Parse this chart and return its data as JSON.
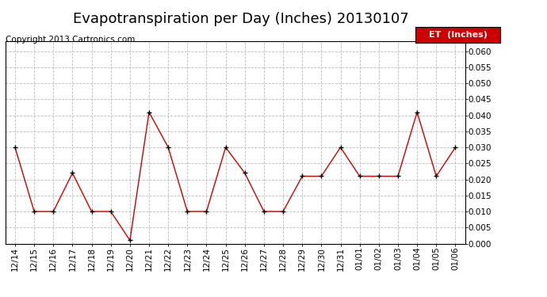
{
  "title": "Evapotranspiration per Day (Inches) 20130107",
  "copyright": "Copyright 2013 Cartronics.com",
  "legend_label": "ET  (Inches)",
  "x_labels": [
    "12/14",
    "12/15",
    "12/16",
    "12/17",
    "12/18",
    "12/19",
    "12/20",
    "12/21",
    "12/22",
    "12/23",
    "12/24",
    "12/25",
    "12/26",
    "12/27",
    "12/28",
    "12/29",
    "12/30",
    "12/31",
    "01/01",
    "01/02",
    "01/03",
    "01/04",
    "01/05",
    "01/06"
  ],
  "y_values": [
    0.03,
    0.01,
    0.01,
    0.022,
    0.01,
    0.01,
    0.001,
    0.041,
    0.03,
    0.01,
    0.01,
    0.03,
    0.022,
    0.01,
    0.01,
    0.021,
    0.021,
    0.03,
    0.021,
    0.021,
    0.021,
    0.041,
    0.021,
    0.03
  ],
  "line_color": "#cc0000",
  "marker_color": "#000000",
  "bg_color": "#ffffff",
  "grid_color": "#bbbbbb",
  "ylim": [
    0.0,
    0.063
  ],
  "yticks": [
    0.0,
    0.005,
    0.01,
    0.015,
    0.02,
    0.025,
    0.03,
    0.035,
    0.04,
    0.045,
    0.05,
    0.055,
    0.06
  ],
  "legend_bg": "#cc0000",
  "legend_text_color": "#ffffff",
  "title_fontsize": 13,
  "copyright_fontsize": 7.5,
  "tick_fontsize": 7.5,
  "legend_fontsize": 8
}
